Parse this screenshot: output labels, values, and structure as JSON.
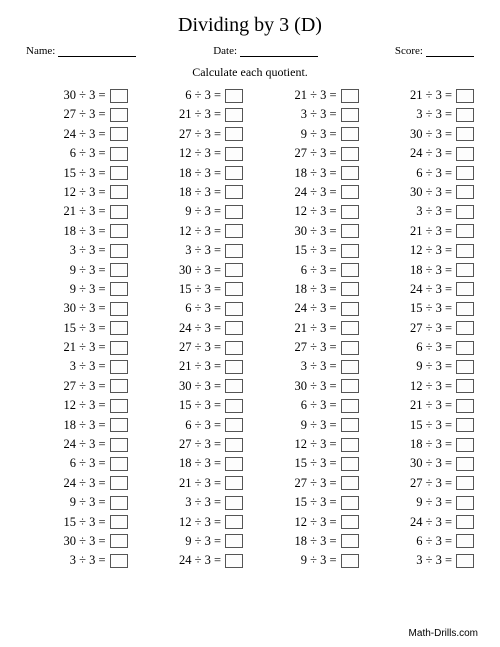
{
  "title": "Dividing by 3 (D)",
  "meta": {
    "name_label": "Name:",
    "date_label": "Date:",
    "score_label": "Score:"
  },
  "instruction": "Calculate each quotient.",
  "footer": "Math-Drills.com",
  "style": {
    "background_color": "#ffffff",
    "text_color": "#000000",
    "title_fontsize": 20,
    "body_fontsize": 12.5,
    "answer_box": {
      "width": 18,
      "height": 14,
      "border_color": "#555555"
    },
    "columns": 4,
    "rows": 25
  },
  "divisor": 3,
  "operator": "÷",
  "columns": [
    [
      30,
      27,
      24,
      6,
      15,
      12,
      21,
      18,
      3,
      9,
      9,
      30,
      15,
      21,
      3,
      27,
      12,
      18,
      24,
      6,
      24,
      9,
      15,
      30,
      3
    ],
    [
      6,
      21,
      27,
      12,
      18,
      18,
      9,
      12,
      3,
      30,
      15,
      6,
      24,
      27,
      21,
      30,
      15,
      6,
      27,
      18,
      21,
      3,
      12,
      9,
      24
    ],
    [
      21,
      3,
      9,
      27,
      18,
      24,
      12,
      30,
      15,
      6,
      18,
      24,
      21,
      27,
      3,
      30,
      6,
      9,
      12,
      15,
      27,
      15,
      12,
      18,
      9
    ],
    [
      21,
      3,
      30,
      24,
      6,
      30,
      3,
      21,
      12,
      18,
      24,
      15,
      27,
      6,
      9,
      12,
      21,
      15,
      18,
      30,
      27,
      9,
      24,
      6,
      3
    ]
  ]
}
